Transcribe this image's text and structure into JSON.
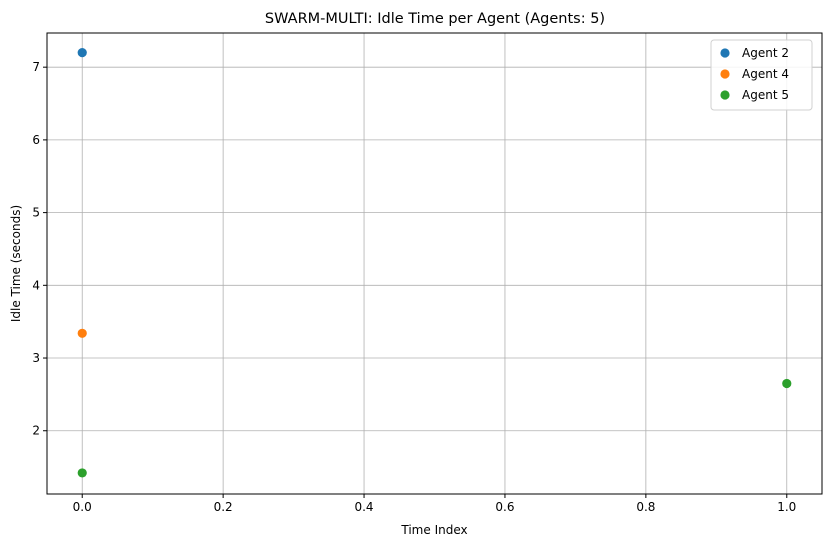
{
  "chart_data": {
    "type": "scatter",
    "title": "SWARM-MULTI: Idle Time per Agent (Agents: 5)",
    "xlabel": "Time Index",
    "ylabel": "Idle Time (seconds)",
    "xlim": [
      -0.05,
      1.05
    ],
    "ylim": [
      1.13,
      7.47
    ],
    "xticks": [
      0.0,
      0.2,
      0.4,
      0.6,
      0.8,
      1.0
    ],
    "xtick_labels": [
      "0.0",
      "0.2",
      "0.4",
      "0.6",
      "0.8",
      "1.0"
    ],
    "yticks": [
      2,
      3,
      4,
      5,
      6,
      7
    ],
    "ytick_labels": [
      "2",
      "3",
      "4",
      "5",
      "6",
      "7"
    ],
    "grid": true,
    "legend_position": "top-right",
    "series": [
      {
        "name": "Agent 2",
        "color": "#1f77b4",
        "points": [
          {
            "x": 0,
            "y": 7.2
          }
        ]
      },
      {
        "name": "Agent 4",
        "color": "#ff7f0e",
        "points": [
          {
            "x": 0,
            "y": 3.34
          }
        ]
      },
      {
        "name": "Agent 5",
        "color": "#2ca02c",
        "points": [
          {
            "x": 0,
            "y": 1.42
          },
          {
            "x": 1,
            "y": 2.65
          }
        ]
      }
    ]
  }
}
